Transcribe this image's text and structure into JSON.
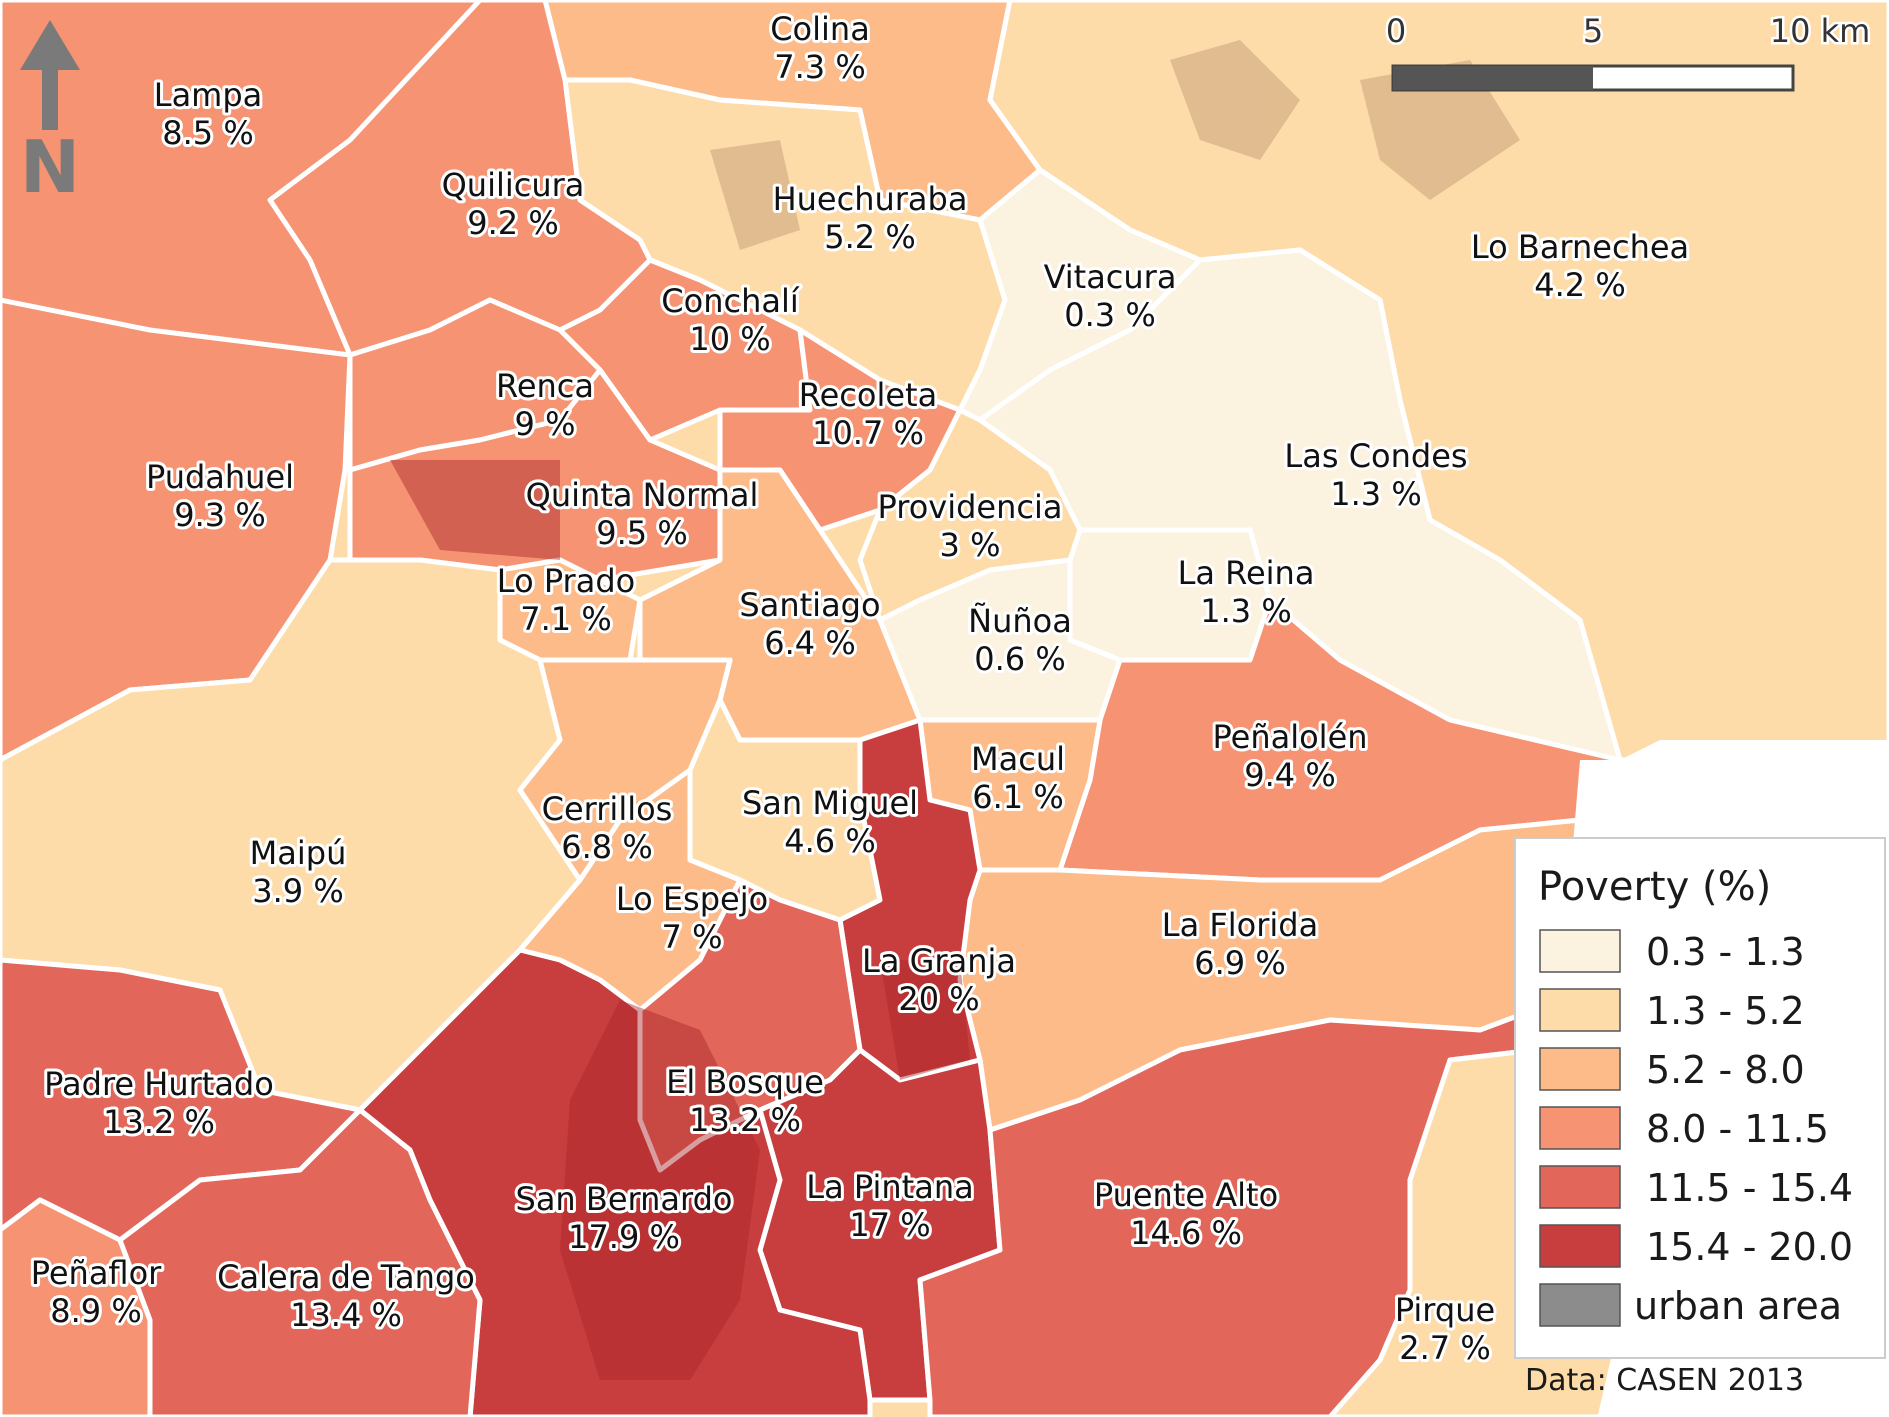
{
  "credit": "Data: CASEN 2013",
  "north_arrow": {
    "letter": "N",
    "icon": "north-arrow-icon"
  },
  "scale_bar": {
    "ticks": [
      "0",
      "5",
      "10 km"
    ]
  },
  "legend": {
    "title": "Poverty (%)",
    "classes": [
      {
        "range": "0.3 - 1.3",
        "color": "#fcf2e0"
      },
      {
        "range": "1.3 - 5.2",
        "color": "#fddcaa"
      },
      {
        "range": "5.2 - 8.0",
        "color": "#fcbb89"
      },
      {
        "range": "8.0 - 11.5",
        "color": "#f59373"
      },
      {
        "range": "11.5 - 15.4",
        "color": "#e2675a"
      },
      {
        "range": "15.4 - 20.0",
        "color": "#c83d3d"
      },
      {
        "range": "urban area",
        "color": "#8c8c8c"
      }
    ]
  },
  "municipalities": [
    {
      "id": "colina",
      "name": "Colina",
      "poverty": "7.3 %",
      "color": "#fcbb89"
    },
    {
      "id": "lampa",
      "name": "Lampa",
      "poverty": "8.5 %",
      "color": "#f59373"
    },
    {
      "id": "quilicura",
      "name": "Quilicura",
      "poverty": "9.2 %",
      "color": "#f59373"
    },
    {
      "id": "huechuraba",
      "name": "Huechuraba",
      "poverty": "5.2 %",
      "color": "#fddcaa"
    },
    {
      "id": "lo-barnechea",
      "name": "Lo Barnechea",
      "poverty": "4.2 %",
      "color": "#fddcaa"
    },
    {
      "id": "vitacura",
      "name": "Vitacura",
      "poverty": "0.3 %",
      "color": "#fcf2e0"
    },
    {
      "id": "conchali",
      "name": "Conchalí",
      "poverty": "10 %",
      "color": "#f59373"
    },
    {
      "id": "recoleta",
      "name": "Recoleta",
      "poverty": "10.7 %",
      "color": "#f59373"
    },
    {
      "id": "renca",
      "name": "Renca",
      "poverty": "9 %",
      "color": "#f59373"
    },
    {
      "id": "pudahuel",
      "name": "Pudahuel",
      "poverty": "9.3 %",
      "color": "#f59373"
    },
    {
      "id": "quinta-normal",
      "name": "Quinta Normal",
      "poverty": "9.5 %",
      "color": "#f59373"
    },
    {
      "id": "las-condes",
      "name": "Las Condes",
      "poverty": "1.3 %",
      "color": "#fcf2e0"
    },
    {
      "id": "providencia",
      "name": "Providencia",
      "poverty": "3 %",
      "color": "#fddcaa"
    },
    {
      "id": "la-reina",
      "name": "La Reina",
      "poverty": "1.3 %",
      "color": "#fcf2e0"
    },
    {
      "id": "lo-prado",
      "name": "Lo Prado",
      "poverty": "7.1 %",
      "color": "#fcbb89"
    },
    {
      "id": "santiago",
      "name": "Santiago",
      "poverty": "6.4 %",
      "color": "#fcbb89"
    },
    {
      "id": "nunoa",
      "name": "Ñuñoa",
      "poverty": "0.6 %",
      "color": "#fcf2e0"
    },
    {
      "id": "penalolen",
      "name": "Peñalolén",
      "poverty": "9.4 %",
      "color": "#f59373"
    },
    {
      "id": "macul",
      "name": "Macul",
      "poverty": "6.1 %",
      "color": "#fcbb89"
    },
    {
      "id": "cerrillos",
      "name": "Cerrillos",
      "poverty": "6.8 %",
      "color": "#fcbb89"
    },
    {
      "id": "san-miguel",
      "name": "San Miguel",
      "poverty": "4.6 %",
      "color": "#fddcaa"
    },
    {
      "id": "maipu",
      "name": "Maipú",
      "poverty": "3.9 %",
      "color": "#fddcaa"
    },
    {
      "id": "lo-espejo",
      "name": "Lo Espejo",
      "poverty": "7 %",
      "color": "#fcbb89"
    },
    {
      "id": "la-florida",
      "name": "La Florida",
      "poverty": "6.9 %",
      "color": "#fcbb89"
    },
    {
      "id": "la-granja",
      "name": "La Granja",
      "poverty": "20 %",
      "color": "#c83d3d"
    },
    {
      "id": "padre-hurtado",
      "name": "Padre Hurtado",
      "poverty": "13.2 %",
      "color": "#e2675a"
    },
    {
      "id": "el-bosque",
      "name": "El Bosque",
      "poverty": "13.2 %",
      "color": "#e2675a"
    },
    {
      "id": "puente-alto",
      "name": "Puente Alto",
      "poverty": "14.6 %",
      "color": "#e2675a"
    },
    {
      "id": "la-pintana",
      "name": "La Pintana",
      "poverty": "17 %",
      "color": "#c83d3d"
    },
    {
      "id": "san-bernardo",
      "name": "San Bernardo",
      "poverty": "17.9 %",
      "color": "#c83d3d"
    },
    {
      "id": "penaflor",
      "name": "Peñaflor",
      "poverty": "8.9 %",
      "color": "#f59373"
    },
    {
      "id": "calera-de-tango",
      "name": "Calera de Tango",
      "poverty": "13.4 %",
      "color": "#e2675a"
    },
    {
      "id": "pirque",
      "name": "Pirque",
      "poverty": "2.7 %",
      "color": "#fddcaa"
    }
  ]
}
